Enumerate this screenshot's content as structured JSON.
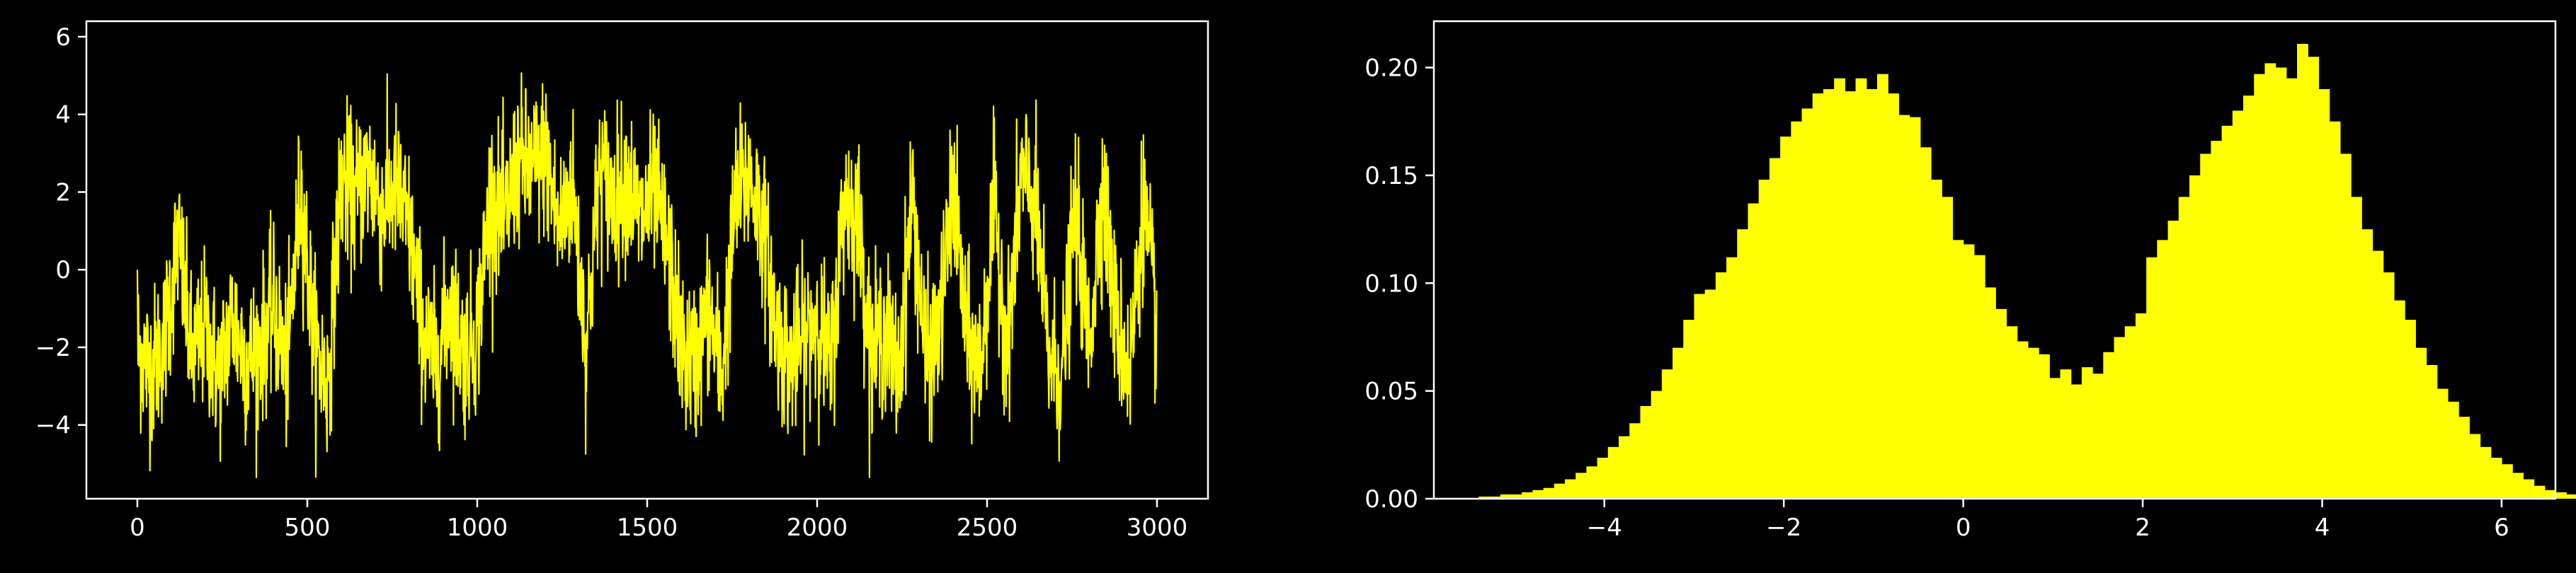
{
  "chart_data": [
    {
      "type": "line",
      "title": "",
      "xlabel": "",
      "ylabel": "",
      "xlim": [
        -150,
        3150
      ],
      "ylim": [
        -5.9,
        6.4
      ],
      "x_ticks": [
        0,
        500,
        1000,
        1500,
        2000,
        2500,
        3000
      ],
      "y_ticks": [
        -4,
        -2,
        0,
        2,
        4,
        6
      ],
      "x_tick_labels": [
        "0",
        "500",
        "1000",
        "1500",
        "2000",
        "2500",
        "3000"
      ],
      "y_tick_labels": [
        "−4",
        "−2",
        "0",
        "2",
        "4",
        "6"
      ],
      "grid": false,
      "legend": "none",
      "series": [
        {
          "color": "#ffff00",
          "n_points": 3000,
          "description_values": "noisy trace switching between two wells near -2 and +2",
          "x": [
            0,
            40,
            80,
            120,
            160,
            200,
            240,
            280,
            320,
            360,
            400,
            440,
            480,
            520,
            560,
            600,
            640,
            680,
            720,
            760,
            800,
            840,
            880,
            920,
            960,
            1000,
            1040,
            1080,
            1120,
            1160,
            1200,
            1240,
            1280,
            1320,
            1360,
            1400,
            1440,
            1480,
            1520,
            1560,
            1600,
            1640,
            1680,
            1720,
            1760,
            1800,
            1840,
            1880,
            1920,
            1960,
            2000,
            2040,
            2080,
            2120,
            2160,
            2200,
            2240,
            2280,
            2320,
            2360,
            2400,
            2440,
            2480,
            2520,
            2560,
            2600,
            2640,
            2680,
            2720,
            2760,
            2800,
            2840,
            2880,
            2920,
            2960,
            3000
          ],
          "y": [
            -2.0,
            -2.6,
            -1.8,
            0.8,
            -2.3,
            -1.5,
            -2.8,
            -1.2,
            -2.4,
            -2.0,
            -1.0,
            -2.6,
            2.1,
            -1.8,
            -3.0,
            2.4,
            1.8,
            2.6,
            1.5,
            2.2,
            1.0,
            -1.6,
            -2.5,
            -0.8,
            -2.2,
            -1.6,
            2.0,
            1.2,
            2.8,
            2.5,
            3.0,
            1.0,
            2.2,
            -2.0,
            2.6,
            1.8,
            2.4,
            1.2,
            2.0,
            0.6,
            -2.0,
            -2.5,
            -1.0,
            -2.8,
            1.8,
            2.4,
            1.2,
            -1.6,
            -2.4,
            -1.8,
            -1.2,
            -2.6,
            1.8,
            1.4,
            -2.2,
            -1.5,
            -2.8,
            2.0,
            -2.4,
            -1.6,
            2.2,
            -1.8,
            -2.6,
            1.6,
            -2.0,
            2.4,
            1.8,
            -2.2,
            -2.8,
            1.6,
            -2.0,
            2.2,
            -1.4,
            -2.6,
            1.8,
            -1.6
          ]
        }
      ]
    },
    {
      "type": "bar",
      "title": "",
      "xlabel": "",
      "ylabel": "",
      "xlim": [
        -5.9,
        6.6
      ],
      "ylim": [
        0,
        0.2215
      ],
      "x_ticks": [
        -4,
        -2,
        0,
        2,
        4,
        6
      ],
      "y_ticks": [
        0.0,
        0.05,
        0.1,
        0.15,
        0.2
      ],
      "x_tick_labels": [
        "−4",
        "−2",
        "0",
        "2",
        "4",
        "6"
      ],
      "y_tick_labels": [
        "0.00",
        "0.05",
        "0.10",
        "0.15",
        "0.20"
      ],
      "grid": false,
      "legend": "none",
      "bin_start": -5.4,
      "bin_width": 0.12,
      "color": "#ffff00",
      "values": [
        0.001,
        0.001,
        0.002,
        0.002,
        0.003,
        0.004,
        0.005,
        0.007,
        0.009,
        0.012,
        0.015,
        0.019,
        0.024,
        0.029,
        0.035,
        0.043,
        0.05,
        0.06,
        0.07,
        0.083,
        0.095,
        0.097,
        0.105,
        0.112,
        0.125,
        0.137,
        0.148,
        0.158,
        0.168,
        0.175,
        0.181,
        0.188,
        0.19,
        0.195,
        0.189,
        0.195,
        0.19,
        0.197,
        0.188,
        0.178,
        0.177,
        0.163,
        0.148,
        0.14,
        0.12,
        0.118,
        0.113,
        0.098,
        0.088,
        0.08,
        0.073,
        0.07,
        0.067,
        0.056,
        0.06,
        0.053,
        0.061,
        0.058,
        0.068,
        0.075,
        0.08,
        0.086,
        0.112,
        0.12,
        0.129,
        0.14,
        0.15,
        0.16,
        0.166,
        0.173,
        0.18,
        0.187,
        0.197,
        0.202,
        0.2,
        0.195,
        0.211,
        0.205,
        0.19,
        0.175,
        0.16,
        0.14,
        0.125,
        0.115,
        0.105,
        0.092,
        0.083,
        0.07,
        0.062,
        0.051,
        0.045,
        0.038,
        0.03,
        0.024,
        0.019,
        0.016,
        0.012,
        0.009,
        0.006,
        0.004,
        0.003,
        0.002,
        0.001,
        0.001,
        0.001,
        0.001
      ]
    }
  ]
}
